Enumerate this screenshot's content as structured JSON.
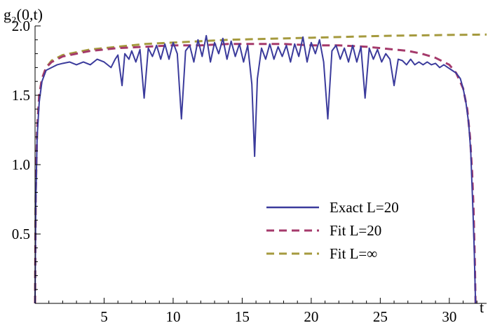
{
  "chart_data": {
    "type": "line",
    "ylabel": "g₂(0,t)",
    "xlabel": "t",
    "xlim": [
      0,
      32.7
    ],
    "ylim": [
      0,
      2.0
    ],
    "x_ticks": [
      5,
      10,
      15,
      20,
      25,
      30
    ],
    "x_tick_labels": [
      "5",
      "10",
      "15",
      "20",
      "25",
      "30"
    ],
    "y_ticks": [
      0.5,
      1.0,
      1.5,
      2.0
    ],
    "y_tick_labels": [
      "0.5",
      "1.0",
      "1.5",
      "2.0"
    ],
    "legend_position": "bottom-right",
    "series": [
      {
        "name": "Exact L=20",
        "style": "solid",
        "color": "#3b3b9c",
        "x": [
          0,
          0.05,
          0.15,
          0.3,
          0.5,
          0.8,
          1.2,
          1.6,
          2.0,
          2.5,
          3.0,
          3.5,
          4.0,
          4.5,
          5.0,
          5.5,
          5.8,
          6.0,
          6.3,
          6.5,
          6.8,
          7.0,
          7.3,
          7.6,
          7.9,
          8.2,
          8.5,
          8.8,
          9.1,
          9.4,
          9.7,
          10.0,
          10.3,
          10.6,
          10.9,
          11.2,
          11.5,
          11.8,
          12.1,
          12.4,
          12.7,
          13.0,
          13.3,
          13.6,
          13.9,
          14.2,
          14.5,
          14.8,
          15.1,
          15.4,
          15.7,
          15.9,
          16.1,
          16.4,
          16.7,
          17.0,
          17.3,
          17.6,
          17.9,
          18.2,
          18.5,
          18.8,
          19.1,
          19.4,
          19.7,
          20.0,
          20.3,
          20.6,
          20.9,
          21.2,
          21.5,
          21.8,
          22.1,
          22.4,
          22.7,
          23.0,
          23.3,
          23.6,
          23.9,
          24.2,
          24.5,
          24.8,
          25.1,
          25.4,
          25.7,
          26.0,
          26.3,
          26.6,
          26.9,
          27.2,
          27.5,
          27.8,
          28.1,
          28.4,
          28.7,
          29.0,
          29.3,
          29.6,
          29.9,
          30.2,
          30.5,
          30.8,
          31.0,
          31.2,
          31.4,
          31.55,
          31.7,
          31.8,
          31.9
        ],
        "y": [
          0.0,
          0.7,
          1.2,
          1.45,
          1.6,
          1.68,
          1.7,
          1.72,
          1.73,
          1.74,
          1.72,
          1.74,
          1.72,
          1.76,
          1.74,
          1.7,
          1.76,
          1.79,
          1.57,
          1.8,
          1.76,
          1.82,
          1.74,
          1.83,
          1.48,
          1.84,
          1.78,
          1.86,
          1.76,
          1.87,
          1.76,
          1.88,
          1.8,
          1.33,
          1.82,
          1.86,
          1.74,
          1.9,
          1.78,
          1.93,
          1.74,
          1.88,
          1.8,
          1.91,
          1.76,
          1.89,
          1.78,
          1.87,
          1.74,
          1.86,
          1.58,
          1.06,
          1.62,
          1.84,
          1.76,
          1.87,
          1.76,
          1.85,
          1.78,
          1.86,
          1.74,
          1.87,
          1.78,
          1.92,
          1.74,
          1.88,
          1.8,
          1.9,
          1.74,
          1.33,
          1.82,
          1.86,
          1.76,
          1.84,
          1.74,
          1.86,
          1.74,
          1.85,
          1.48,
          1.84,
          1.76,
          1.83,
          1.74,
          1.8,
          1.76,
          1.57,
          1.76,
          1.75,
          1.72,
          1.76,
          1.72,
          1.74,
          1.72,
          1.74,
          1.72,
          1.73,
          1.7,
          1.72,
          1.7,
          1.68,
          1.66,
          1.62,
          1.55,
          1.45,
          1.3,
          1.1,
          0.7,
          0.4,
          0.0
        ]
      },
      {
        "name": "Fit L=20",
        "style": "dashed",
        "color": "#a53a6b",
        "x": [
          0,
          0.05,
          0.15,
          0.3,
          0.5,
          0.8,
          1.2,
          1.6,
          2.0,
          3.0,
          4.0,
          5.0,
          6.0,
          8.0,
          10.0,
          12.0,
          14.0,
          16.0,
          18.0,
          20.0,
          22.0,
          24.0,
          26.0,
          27.0,
          28.0,
          29.0,
          30.0,
          30.5,
          31.0,
          31.3,
          31.5,
          31.65,
          31.75,
          31.85,
          31.9
        ],
        "y": [
          0.0,
          0.8,
          1.25,
          1.5,
          1.62,
          1.7,
          1.74,
          1.76,
          1.78,
          1.8,
          1.82,
          1.83,
          1.84,
          1.85,
          1.86,
          1.86,
          1.87,
          1.87,
          1.87,
          1.86,
          1.86,
          1.85,
          1.83,
          1.82,
          1.8,
          1.77,
          1.72,
          1.66,
          1.55,
          1.4,
          1.2,
          0.95,
          0.7,
          0.3,
          0.0
        ]
      },
      {
        "name": "Fit L=∞",
        "style": "dashed",
        "color": "#a59a3e",
        "x": [
          0,
          0.05,
          0.15,
          0.3,
          0.5,
          0.8,
          1.2,
          1.6,
          2.0,
          3.0,
          4.0,
          5.0,
          6.0,
          8.0,
          10.0,
          12.0,
          14.0,
          16.0,
          18.0,
          20.0,
          22.0,
          24.0,
          26.0,
          28.0,
          30.0,
          32.0,
          32.7
        ],
        "y": [
          0.0,
          0.8,
          1.25,
          1.5,
          1.62,
          1.7,
          1.75,
          1.77,
          1.79,
          1.81,
          1.83,
          1.84,
          1.85,
          1.87,
          1.88,
          1.89,
          1.9,
          1.905,
          1.91,
          1.915,
          1.92,
          1.925,
          1.93,
          1.932,
          1.935,
          1.937,
          1.938
        ]
      }
    ]
  }
}
